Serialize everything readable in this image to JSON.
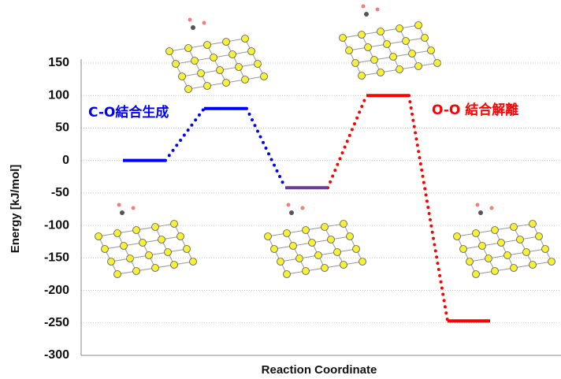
{
  "chart_data": {
    "type": "energy-diagram",
    "xlabel": "Reaction Coordinate",
    "ylabel": "Energy [kJ/mol]",
    "values": [
      0,
      80,
      -42,
      100,
      -247
    ],
    "level_colors": [
      "#0000ff",
      "#0000ff",
      "#6a3d9a",
      "#ff0000",
      "#ff0000"
    ],
    "connector_colors": [
      "#0000ff",
      "#0000ff",
      "#ff0000",
      "#ff0000"
    ],
    "annotations": [
      {
        "text": "C-O結合生成",
        "color": "#0000ff"
      },
      {
        "text": "O-O 結合解離",
        "color": "#ff0000"
      }
    ],
    "ylim": [
      -300,
      150
    ],
    "yticks": [
      -300,
      -250,
      -200,
      -150,
      -100,
      -50,
      0,
      50,
      100,
      150
    ],
    "grid": true
  }
}
